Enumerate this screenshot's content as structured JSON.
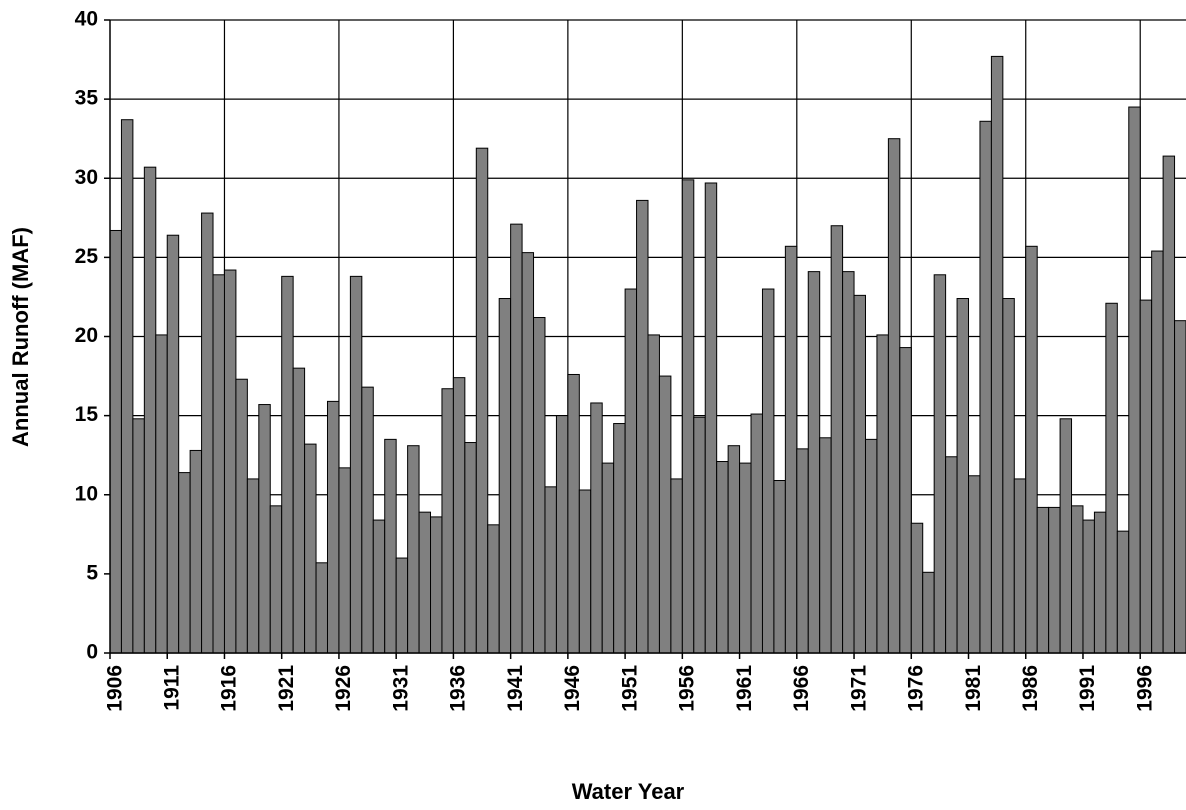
{
  "chart_data": {
    "type": "bar",
    "x_label": "Water Year",
    "y_label": "Annual Runoff (MAF)",
    "categories": [
      "1906",
      null,
      null,
      null,
      null,
      "1911",
      null,
      null,
      null,
      null,
      "1916",
      null,
      null,
      null,
      null,
      "1921",
      null,
      null,
      null,
      null,
      "1926",
      null,
      null,
      null,
      null,
      "1931",
      null,
      null,
      null,
      null,
      "1936",
      null,
      null,
      null,
      null,
      "1941",
      null,
      null,
      null,
      null,
      "1946",
      null,
      null,
      null,
      null,
      "1951",
      null,
      null,
      null,
      null,
      "1956",
      null,
      null,
      null,
      null,
      "1961",
      null,
      null,
      null,
      null,
      "1966",
      null,
      null,
      null,
      null,
      "1971",
      null,
      null,
      null,
      null,
      "1976",
      null,
      null,
      null,
      null,
      "1981",
      null,
      null,
      null,
      null,
      "1986",
      null,
      null,
      null,
      null,
      "1991",
      null,
      null,
      null,
      null,
      "1996",
      null,
      null,
      null
    ],
    "values": [
      26.7,
      33.7,
      14.8,
      30.7,
      20.1,
      26.4,
      11.4,
      12.8,
      27.8,
      23.9,
      24.2,
      17.3,
      11.0,
      15.7,
      9.3,
      23.8,
      18.0,
      13.2,
      5.7,
      15.9,
      11.7,
      23.8,
      16.8,
      8.4,
      13.5,
      6.0,
      13.1,
      8.9,
      8.6,
      16.7,
      17.4,
      13.3,
      31.9,
      8.1,
      22.4,
      27.1,
      25.3,
      21.2,
      10.5,
      15.0,
      17.6,
      10.3,
      15.8,
      12.0,
      14.5,
      23.0,
      28.6,
      20.1,
      17.5,
      11.0,
      29.9,
      14.9,
      29.7,
      12.1,
      13.1,
      12.0,
      15.1,
      23.0,
      10.9,
      25.7,
      12.9,
      24.1,
      13.6,
      27.0,
      24.1,
      22.6,
      13.5,
      20.1,
      32.5,
      19.3,
      8.2,
      5.1,
      23.9,
      12.4,
      22.4,
      11.2,
      33.6,
      37.7,
      22.4,
      11.0,
      25.7,
      9.2,
      9.2,
      14.8,
      9.3,
      8.4,
      8.9,
      22.1,
      7.7,
      34.5,
      22.3,
      25.4,
      31.4,
      21.0
    ],
    "color": "#808080",
    "ylim": [
      0,
      40
    ],
    "yticks": [
      0,
      5,
      10,
      15,
      20,
      25,
      30,
      35,
      40
    ],
    "grid": true
  }
}
